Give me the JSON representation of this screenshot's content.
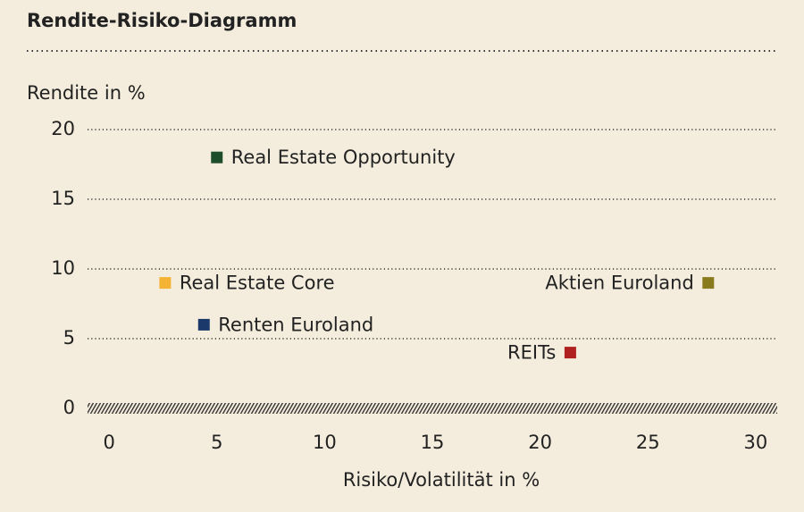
{
  "chart_data": {
    "type": "scatter",
    "title": "Rendite-Risiko-Diagramm",
    "ylabel": "Rendite in %",
    "xlabel": "Risiko/Volatilität in %",
    "xlim": [
      -1,
      31
    ],
    "xticks": [
      0,
      5,
      10,
      15,
      20,
      25,
      30
    ],
    "ylim": [
      0,
      20
    ],
    "yticks": [
      0,
      5,
      10,
      15,
      20
    ],
    "grid": true,
    "series": [
      {
        "name": "Real Estate Opportunity",
        "color": "#1e4d2b",
        "x": [
          5
        ],
        "values": [
          18
        ]
      },
      {
        "name": "Real Estate Core",
        "color": "#f5b335",
        "x": [
          2.6
        ],
        "values": [
          9
        ]
      },
      {
        "name": "Renten Euroland",
        "color": "#1b3a6b",
        "x": [
          4.4
        ],
        "values": [
          6
        ]
      },
      {
        "name": "Aktien Euroland",
        "color": "#8a7a1e",
        "x": [
          27.8
        ],
        "values": [
          9
        ]
      },
      {
        "name": "REITs",
        "color": "#b0201e",
        "x": [
          21.4
        ],
        "values": [
          4
        ]
      }
    ]
  }
}
